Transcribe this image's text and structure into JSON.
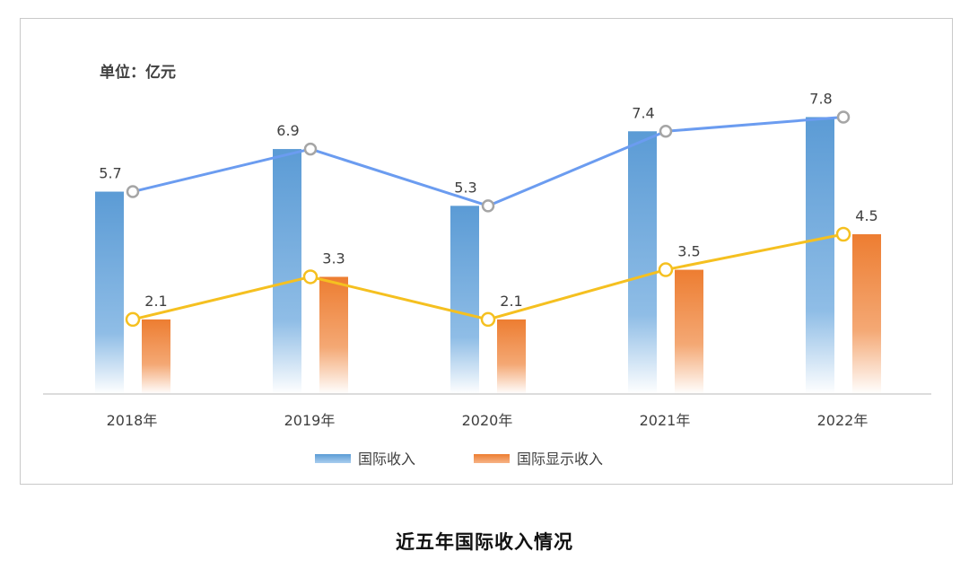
{
  "caption": "近五年国际收入情况",
  "chart_data": {
    "type": "bar",
    "unit_label": "单位：亿元",
    "categories": [
      "2018年",
      "2019年",
      "2020年",
      "2021年",
      "2022年"
    ],
    "series": [
      {
        "name": "国际收入",
        "values": [
          5.7,
          6.9,
          5.3,
          7.4,
          7.8
        ],
        "bar_color": "#5b9bd5",
        "line_color": "#6b9cf0"
      },
      {
        "name": "国际显示收入",
        "values": [
          2.1,
          3.3,
          2.1,
          3.5,
          4.5
        ],
        "bar_color": "#ed7d31",
        "line_color": "#f5c020"
      }
    ],
    "overlay": "line",
    "ylim": [
      0,
      9
    ],
    "grid": false,
    "legend_position": "bottom"
  }
}
